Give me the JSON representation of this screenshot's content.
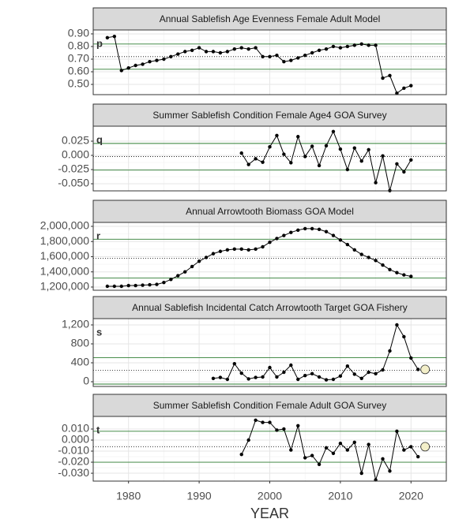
{
  "chart_data": [
    {
      "type": "line",
      "title": "Annual Sablefish Age Evenness Female Adult Model",
      "panel_label": "p",
      "x": [
        1977,
        1978,
        1979,
        1980,
        1981,
        1982,
        1983,
        1984,
        1985,
        1986,
        1987,
        1988,
        1989,
        1990,
        1991,
        1992,
        1993,
        1994,
        1995,
        1996,
        1997,
        1998,
        1999,
        2000,
        2001,
        2002,
        2003,
        2004,
        2005,
        2006,
        2007,
        2008,
        2009,
        2010,
        2011,
        2012,
        2013,
        2014,
        2015,
        2016,
        2017,
        2018,
        2019,
        2020
      ],
      "values": [
        0.87,
        0.88,
        0.61,
        0.63,
        0.65,
        0.66,
        0.68,
        0.69,
        0.7,
        0.72,
        0.74,
        0.76,
        0.77,
        0.79,
        0.76,
        0.76,
        0.75,
        0.76,
        0.78,
        0.79,
        0.78,
        0.79,
        0.72,
        0.72,
        0.73,
        0.68,
        0.69,
        0.71,
        0.73,
        0.75,
        0.77,
        0.78,
        0.8,
        0.79,
        0.8,
        0.81,
        0.82,
        0.81,
        0.81,
        0.55,
        0.57,
        0.43,
        0.47,
        0.49
      ],
      "color": "#000000",
      "xlim": [
        1975,
        2025
      ],
      "xticks": [
        1980,
        1990,
        2000,
        2010,
        2020
      ],
      "ylim": [
        0.419,
        0.931
      ],
      "yticks": [
        {
          "value": 0.5,
          "label": "0.50"
        },
        {
          "value": 0.6,
          "label": "0.60"
        },
        {
          "value": 0.7,
          "label": "0.70"
        },
        {
          "value": 0.8,
          "label": "0.80"
        },
        {
          "value": 0.9,
          "label": "0.90"
        }
      ],
      "reference_lines": [
        {
          "value": 0.82,
          "style": "solid",
          "color": "#2e7d32"
        },
        {
          "value": 0.62,
          "style": "solid",
          "color": "#2e7d32"
        },
        {
          "value": 0.72,
          "style": "dotted",
          "color": "#000000"
        }
      ],
      "grid": true
    },
    {
      "type": "line",
      "title": "Summer Sablefish Condition Female Age4 GOA Survey",
      "panel_label": "q",
      "x": [
        1996,
        1997,
        1998,
        1999,
        2000,
        2001,
        2002,
        2003,
        2004,
        2005,
        2006,
        2007,
        2008,
        2009,
        2010,
        2011,
        2012,
        2013,
        2014,
        2015,
        2016,
        2017,
        2018,
        2019,
        2020
      ],
      "values": [
        0.004,
        -0.016,
        -0.006,
        -0.012,
        0.015,
        0.035,
        0.002,
        -0.013,
        0.033,
        -0.002,
        0.016,
        -0.018,
        0.017,
        0.042,
        0.011,
        -0.025,
        0.013,
        -0.01,
        0.01,
        -0.048,
        -0.001,
        -0.062,
        -0.015,
        -0.029,
        -0.008
      ],
      "color": "#000000",
      "xlim": [
        1975,
        2025
      ],
      "xticks": [
        1980,
        1990,
        2000,
        2010,
        2020
      ],
      "ylim": [
        -0.0625,
        0.0514
      ],
      "yticks": [
        {
          "value": -0.05,
          "label": "-0.050"
        },
        -0.025,
        {
          "value": 0,
          "label": "0.000"
        },
        0.025
      ],
      "reference_lines": [
        {
          "value": 0.021,
          "style": "solid",
          "color": "#2e7d32"
        },
        {
          "value": -0.026,
          "style": "solid",
          "color": "#2e7d32"
        },
        {
          "value": -0.002,
          "style": "dotted",
          "color": "#000000"
        }
      ],
      "grid": true
    },
    {
      "type": "line",
      "title": "Annual Arrowtooth Biomass GOA Model",
      "panel_label": "r",
      "x": [
        1977,
        1978,
        1979,
        1980,
        1981,
        1982,
        1983,
        1984,
        1985,
        1986,
        1987,
        1988,
        1989,
        1990,
        1991,
        1992,
        1993,
        1994,
        1995,
        1996,
        1997,
        1998,
        1999,
        2000,
        2001,
        2002,
        2003,
        2004,
        2005,
        2006,
        2007,
        2008,
        2009,
        2010,
        2011,
        2012,
        2013,
        2014,
        2015,
        2016,
        2017,
        2018,
        2019,
        2020
      ],
      "values": [
        1210000,
        1210000,
        1210000,
        1220000,
        1220000,
        1225000,
        1230000,
        1235000,
        1260000,
        1300000,
        1350000,
        1400000,
        1470000,
        1540000,
        1590000,
        1640000,
        1670000,
        1690000,
        1700000,
        1700000,
        1690000,
        1700000,
        1730000,
        1790000,
        1840000,
        1880000,
        1920000,
        1950000,
        1970000,
        1970000,
        1960000,
        1930000,
        1880000,
        1820000,
        1760000,
        1690000,
        1630000,
        1590000,
        1550000,
        1490000,
        1430000,
        1390000,
        1360000,
        1340000
      ],
      "color": "#000000",
      "xlim": [
        1975,
        2025
      ],
      "xticks": [
        1980,
        1990,
        2000,
        2010,
        2020
      ],
      "ylim": [
        1158000,
        2052000
      ],
      "yticks": [
        {
          "value": 1200000,
          "label": "1,200,000"
        },
        {
          "value": 1400000,
          "label": "1,400,000"
        },
        {
          "value": 1600000,
          "label": "1,600,000"
        },
        {
          "value": 1800000,
          "label": "1,800,000"
        },
        {
          "value": 2000000,
          "label": "2,000,000"
        }
      ],
      "reference_lines": [
        {
          "value": 1830000,
          "style": "solid",
          "color": "#2e7d32"
        },
        {
          "value": 1320000,
          "style": "solid",
          "color": "#2e7d32"
        },
        {
          "value": 1580000,
          "style": "dotted",
          "color": "#000000"
        }
      ],
      "grid": true
    },
    {
      "type": "line",
      "title": "Annual Sablefish Incidental Catch Arrowtooth Target GOA Fishery",
      "panel_label": "s",
      "x": [
        1992,
        1993,
        1994,
        1995,
        1996,
        1997,
        1998,
        1999,
        2000,
        2001,
        2002,
        2003,
        2004,
        2005,
        2006,
        2007,
        2008,
        2009,
        2010,
        2011,
        2012,
        2013,
        2014,
        2015,
        2016,
        2017,
        2018,
        2019,
        2020,
        2021
      ],
      "values": [
        70,
        90,
        50,
        380,
        180,
        60,
        90,
        100,
        300,
        100,
        200,
        350,
        50,
        130,
        170,
        100,
        40,
        50,
        120,
        330,
        160,
        70,
        200,
        170,
        250,
        650,
        1200,
        950,
        500,
        260
      ],
      "color": "#000000",
      "highlight": {
        "x": 2022,
        "value": 260,
        "color": "#f3efc9"
      },
      "xlim": [
        1975,
        2025
      ],
      "xticks": [
        1980,
        1990,
        2000,
        2010,
        2020
      ],
      "ylim": [
        -100,
        1333
      ],
      "yticks": [
        0,
        400,
        800,
        {
          "value": 1200,
          "label": "1,200"
        }
      ],
      "reference_lines": [
        {
          "value": 510,
          "style": "solid",
          "color": "#2e7d32"
        },
        {
          "value": -50,
          "style": "solid",
          "color": "#2e7d32"
        },
        {
          "value": 240,
          "style": "dotted",
          "color": "#000000"
        }
      ],
      "grid": true
    },
    {
      "type": "line",
      "title": "Summer Sablefish Condition Female Adult GOA Survey",
      "panel_label": "t",
      "x": [
        1996,
        1997,
        1998,
        1999,
        2000,
        2001,
        2002,
        2003,
        2004,
        2005,
        2006,
        2007,
        2008,
        2009,
        2010,
        2011,
        2012,
        2013,
        2014,
        2015,
        2016,
        2017,
        2018,
        2019,
        2020,
        2021
      ],
      "values": [
        -0.013,
        0.0,
        0.018,
        0.016,
        0.016,
        0.009,
        0.01,
        -0.009,
        0.013,
        -0.016,
        -0.014,
        -0.022,
        -0.007,
        -0.012,
        -0.003,
        -0.009,
        -0.002,
        -0.03,
        -0.004,
        -0.036,
        -0.017,
        -0.028,
        0.008,
        -0.009,
        -0.006,
        -0.015
      ],
      "color": "#000000",
      "highlight": {
        "x": 2022,
        "value": -0.006,
        "color": "#f3efc9"
      },
      "xlim": [
        1975,
        2025
      ],
      "xticks": [
        1980,
        1990,
        2000,
        2010,
        2020
      ],
      "xlabel": "YEAR",
      "ylim": [
        -0.0371,
        0.0214
      ],
      "yticks": [
        {
          "value": -0.03,
          "label": "-0.030"
        },
        {
          "value": -0.02,
          "label": "-0.020"
        },
        {
          "value": -0.01,
          "label": "-0.010"
        },
        {
          "value": 0,
          "label": "0.000"
        },
        {
          "value": 0.01,
          "label": "0.010"
        }
      ],
      "reference_lines": [
        {
          "value": 0.008,
          "style": "solid",
          "color": "#2e7d32"
        },
        {
          "value": -0.02,
          "style": "solid",
          "color": "#2e7d32"
        },
        {
          "value": -0.006,
          "style": "dotted",
          "color": "#000000"
        }
      ],
      "grid": true
    }
  ]
}
